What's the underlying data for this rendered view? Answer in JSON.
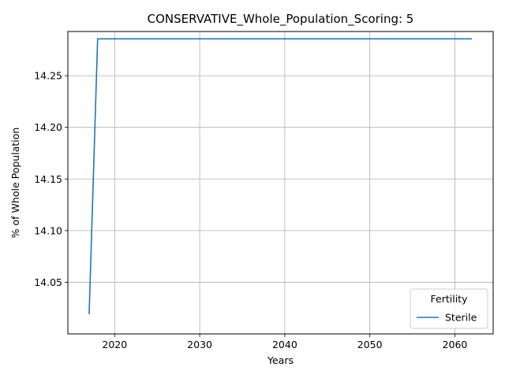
{
  "chart_data": {
    "type": "line",
    "title": "CONSERVATIVE_Whole_Population_Scoring: 5",
    "xlabel": "Years",
    "ylabel": "% of Whole Population",
    "xlim": [
      2014.5,
      2064.5
    ],
    "ylim": [
      14.0,
      14.2928
    ],
    "x_ticks": [
      2020,
      2030,
      2040,
      2050,
      2060
    ],
    "y_ticks": [
      14.05,
      14.1,
      14.15,
      14.2,
      14.25
    ],
    "x_tick_labels": [
      "2020",
      "2030",
      "2040",
      "2050",
      "2060"
    ],
    "y_tick_labels": [
      "14.05",
      "14.10",
      "14.15",
      "14.20",
      "14.25"
    ],
    "grid": true,
    "legend": {
      "title": "Fertility",
      "placement": "lower-right"
    },
    "series": [
      {
        "name": "Sterile",
        "color": "#1f77b4",
        "x": [
          2017,
          2018,
          2062
        ],
        "y": [
          14.019,
          14.2857,
          14.2857
        ]
      }
    ]
  }
}
